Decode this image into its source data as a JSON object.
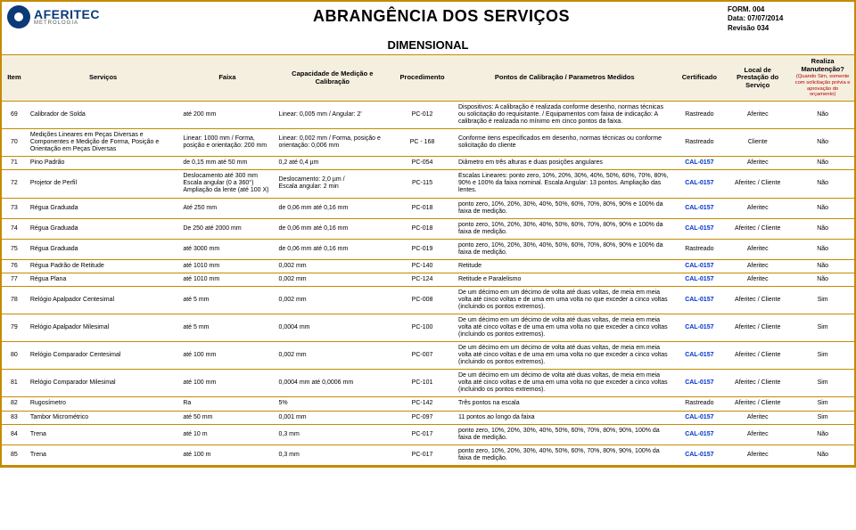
{
  "meta": {
    "form": "FORM. 004",
    "date": "Data: 07/07/2014",
    "rev": "Revisão 034"
  },
  "logo": {
    "brand": "AFERITEC",
    "sub": "METROLOGIA"
  },
  "title": "ABRANGÊNCIA DOS SERVIÇOS",
  "section": "DIMENSIONAL",
  "headers": {
    "item": "Item",
    "servicos": "Serviços",
    "faixa": "Faixa",
    "capacidade": "Capacidade de Medição e Calibração",
    "procedimento": "Procedimento",
    "pontos": "Pontos de Calibração / Parametros Medidos",
    "certificado": "Certificado",
    "local": "Local de Prestação do Serviço",
    "manut": "Realiza Manutenção?",
    "manut_note": "(Quando Sim, somente com solicitação prévia e aprovação do orçamento)"
  },
  "rows": [
    {
      "item": "69",
      "serv": "Calibrador de Solda",
      "faixa": "até 200 mm",
      "cap": "Linear: 0,005 mm / Angular: 2'",
      "proc": "PC-012",
      "pontos": "Dispositivos: A calibração é realizada conforme desenho, normas técnicas ou solicitação do requisitante. / Equipamentos com faixa de indicação: A calibração é realizada no mínimo em cinco pontos da faixa.",
      "cert": "Rastreado",
      "cert_cal": false,
      "local": "Aferitec",
      "manut": "Não"
    },
    {
      "item": "70",
      "serv": "Medições Lineares em Peças Diversas e Componentes e Medição de Forma, Posição e Orientação em Peças Diversas",
      "faixa": "Linear: 1000 mm / Forma, posição e orientação: 200 mm",
      "cap": "Linear: 0,002 mm / Forma, posição e orientação: 0,006 mm",
      "proc": "PC - 168",
      "pontos": "Conforme itens especificados em desenho, normas técnicas ou conforme solicitação do cliente",
      "cert": "Rastreado",
      "cert_cal": false,
      "local": "Cliente",
      "manut": "Não"
    },
    {
      "item": "71",
      "serv": "Pino Padrão",
      "faixa": "de 0,15 mm até 50 mm",
      "cap": "0,2 até 0,4 µm",
      "proc": "PC-054",
      "pontos": "Diâmetro em três alturas e duas posições angulares",
      "cert": "CAL-0157",
      "cert_cal": true,
      "local": "Aferitec",
      "manut": "Não"
    },
    {
      "item": "72",
      "serv": "Projetor de Perfil",
      "faixa": "Deslocamento até 300 mm\nEscala angular (0 a 360°)\nAmpliação da lente (até 100 X)",
      "cap": "Deslocamento: 2,0 µm /\nEscala angular: 2 min",
      "proc": "PC-115",
      "pontos": "Escalas Lineares: ponto zero, 10%, 20%, 30%, 40%, 50%, 60%, 70%, 80%, 90% e 100% da faixa nominal. Escala Angular: 13 pontos. Ampliação das lentes.",
      "cert": "CAL-0157",
      "cert_cal": true,
      "local": "Aferitec / Cliente",
      "manut": "Não"
    },
    {
      "item": "73",
      "serv": "Régua Graduada",
      "faixa": "Até 250 mm",
      "cap": "de 0,06 mm até 0,16 mm",
      "proc": "PC-018",
      "pontos": "ponto zero, 10%, 20%, 30%, 40%, 50%, 60%, 70%, 80%, 90% e 100% da faixa de medição.",
      "cert": "CAL-0157",
      "cert_cal": true,
      "local": "Aferitec",
      "manut": "Não"
    },
    {
      "item": "74",
      "serv": "Régua Graduada",
      "faixa": "De 250 até 2000 mm",
      "cap": "de 0,06 mm até 0,16 mm",
      "proc": "PC-018",
      "pontos": "ponto zero, 10%, 20%, 30%, 40%, 50%, 60%, 70%, 80%, 90% e 100% da faixa de medição.",
      "cert": "CAL-0157",
      "cert_cal": true,
      "local": "Aferitec / Cliente",
      "manut": "Não"
    },
    {
      "item": "75",
      "serv": "Régua Graduada",
      "faixa": "até 3000 mm",
      "cap": "de 0,06 mm até 0,16 mm",
      "proc": "PC-019",
      "pontos": "ponto zero, 10%, 20%, 30%, 40%, 50%, 60%, 70%, 80%, 90% e 100% da faixa de medição.",
      "cert": "Rastreado",
      "cert_cal": false,
      "local": "Aferitec",
      "manut": "Não"
    },
    {
      "item": "76",
      "serv": "Régua Padrão de Retitude",
      "faixa": "até 1010 mm",
      "cap": "0,002 mm",
      "proc": "PC-140",
      "pontos": "Retitude",
      "cert": "CAL-0157",
      "cert_cal": true,
      "local": "Aferitec",
      "manut": "Não"
    },
    {
      "item": "77",
      "serv": "Régua Plana",
      "faixa": "até 1010 mm",
      "cap": "0,002 mm",
      "proc": "PC-124",
      "pontos": "Retitude e Paralelismo",
      "cert": "CAL-0157",
      "cert_cal": true,
      "local": "Aferitec",
      "manut": "Não"
    },
    {
      "item": "78",
      "serv": "Relógio Apalpador Centesimal",
      "faixa": "até 5 mm",
      "cap": "0,002 mm",
      "proc": "PC-008",
      "pontos": "De um décimo em um décimo de volta até duas voltas, de meia em meia volta até cinco voltas e de uma em uma volta no que exceder a cinco voltas (incluindo os pontos extremos).",
      "cert": "CAL-0157",
      "cert_cal": true,
      "local": "Aferitec / Cliente",
      "manut": "Sim"
    },
    {
      "item": "79",
      "serv": "Relógio Apalpador Milesimal",
      "faixa": "até 5 mm",
      "cap": "0,0004 mm",
      "proc": "PC-100",
      "pontos": "De um décimo em um décimo de volta até duas voltas, de meia em meia volta até cinco voltas e de uma em uma volta no que exceder a cinco voltas (incluindo os pontos extremos).",
      "cert": "CAL-0157",
      "cert_cal": true,
      "local": "Aferitec / Cliente",
      "manut": "Sim"
    },
    {
      "item": "80",
      "serv": "Relógio Comparador Centesimal",
      "faixa": "até 100 mm",
      "cap": "0,002 mm",
      "proc": "PC-007",
      "pontos": "De um décimo em um décimo de volta até duas voltas, de meia em meia volta até cinco voltas e de uma em uma volta no que exceder a cinco voltas (incluindo os pontos extremos).",
      "cert": "CAL-0157",
      "cert_cal": true,
      "local": "Aferitec / Cliente",
      "manut": "Sim"
    },
    {
      "item": "81",
      "serv": "Relógio Comparador Milesimal",
      "faixa": "até 100 mm",
      "cap": "0,0004 mm até 0,0006 mm",
      "proc": "PC-101",
      "pontos": "De um décimo em um décimo de volta até duas voltas, de meia em meia volta até cinco voltas e de uma em uma volta no que exceder a cinco voltas (incluindo os pontos extremos).",
      "cert": "CAL-0157",
      "cert_cal": true,
      "local": "Aferitec / Cliente",
      "manut": "Sim"
    },
    {
      "item": "82",
      "serv": "Rugosímetro",
      "faixa": "Ra",
      "cap": "5%",
      "proc": "PC-142",
      "pontos": "Três pontos na escala",
      "cert": "Rastreado",
      "cert_cal": false,
      "local": "Aferitec / Cliente",
      "manut": "Sim"
    },
    {
      "item": "83",
      "serv": "Tambor Micrométrico",
      "faixa": "até 50 mm",
      "cap": "0,001 mm",
      "proc": "PC-097",
      "pontos": "11 pontos ao longo da faixa",
      "cert": "CAL-0157",
      "cert_cal": true,
      "local": "Aferitec",
      "manut": "Sim"
    },
    {
      "item": "84",
      "serv": "Trena",
      "faixa": "até 10 m",
      "cap": "0,3 mm",
      "proc": "PC-017",
      "pontos": "ponto zero, 10%, 20%, 30%, 40%, 50%, 60%, 70%, 80%, 90%, 100% da faixa de medição.",
      "cert": "CAL-0157",
      "cert_cal": true,
      "local": "Aferitec",
      "manut": "Não"
    },
    {
      "item": "85",
      "serv": "Trena",
      "faixa": "até 100 m",
      "cap": "0,3 mm",
      "proc": "PC-017",
      "pontos": "ponto zero, 10%, 20%, 30%, 40%, 50%, 60%, 70%, 80%, 90%, 100% da faixa de medição.",
      "cert": "CAL-0157",
      "cert_cal": true,
      "local": "Aferitec",
      "manut": "Não"
    }
  ],
  "colors": {
    "border": "#c58b00",
    "thead_bg": "#f5efe0",
    "cal_link": "#0033cc",
    "note_red": "#b00000"
  }
}
